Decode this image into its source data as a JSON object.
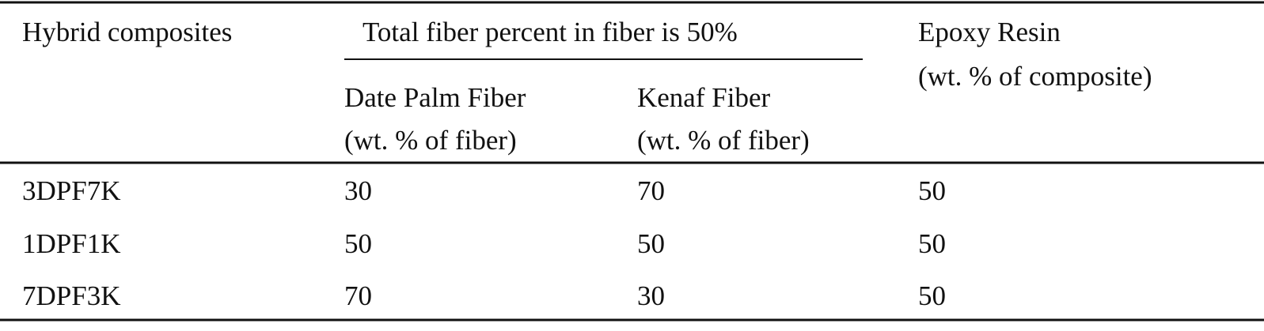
{
  "table": {
    "header": {
      "row_label": "Hybrid composites",
      "group": "Total fiber percent in fiber is 50%",
      "subcolumns": [
        [
          "Date Palm Fiber",
          "(wt. % of fiber)"
        ],
        [
          "Kenaf Fiber",
          "(wt. % of fiber)"
        ]
      ],
      "last": [
        "Epoxy Resin",
        "(wt. % of composite)"
      ]
    },
    "rows": [
      [
        "3DPF7K",
        30,
        70,
        50
      ],
      [
        "1DPF1K",
        50,
        50,
        50
      ],
      [
        "7DPF3K",
        70,
        30,
        50
      ]
    ]
  }
}
